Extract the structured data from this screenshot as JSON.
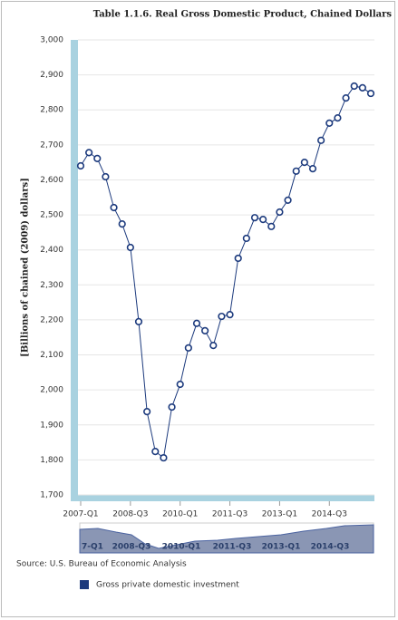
{
  "chart_data": {
    "type": "line",
    "title": "Table 1.1.6. Real Gross Domestic Product, Chained Dollars",
    "y_label": "[Billions of chained (2009) dollars]",
    "categories": [
      "2007-Q1",
      null,
      null,
      null,
      null,
      null,
      "2008-Q3",
      null,
      null,
      null,
      null,
      null,
      "2010-Q1",
      null,
      null,
      null,
      null,
      null,
      "2011-Q3",
      null,
      null,
      null,
      null,
      null,
      "2013-Q1",
      null,
      null,
      null,
      null,
      null,
      "2014-Q3",
      null,
      null,
      null,
      null,
      null
    ],
    "series": [
      {
        "name": "Gross private domestic investment",
        "color": "#1c3a7d",
        "values": [
          2640,
          2678,
          2661,
          2609,
          2521,
          2474,
          2407,
          2195,
          1938,
          1824,
          1806,
          1951,
          2016,
          2120,
          2190,
          2169,
          2127,
          2210,
          2215,
          2376,
          2433,
          2492,
          2487,
          2467,
          2508,
          2542,
          2625,
          2650,
          2632,
          2713,
          2762,
          2777,
          2834,
          2868,
          2863,
          2847
        ]
      }
    ],
    "ylim": [
      1700,
      3000
    ],
    "yticks": [
      {
        "value": 1700,
        "label": "1,700"
      },
      {
        "value": 1800,
        "label": "1,800"
      },
      {
        "value": 1900,
        "label": "1,900"
      },
      {
        "value": 2000,
        "label": "2,000"
      },
      {
        "value": 2100,
        "label": "2,100"
      },
      {
        "value": 2200,
        "label": "2,200"
      },
      {
        "value": 2300,
        "label": "2,300"
      },
      {
        "value": 2400,
        "label": "2,400"
      },
      {
        "value": 2500,
        "label": "2,500"
      },
      {
        "value": 2600,
        "label": "2,600"
      },
      {
        "value": 2700,
        "label": "2,700"
      },
      {
        "value": 2800,
        "label": "2,800"
      },
      {
        "value": 2900,
        "label": "2,900"
      },
      {
        "value": 3000,
        "label": "3,000"
      }
    ],
    "grid": true,
    "navigator_labels": [
      "7-Q1",
      "2008-Q3",
      "2010-Q1",
      "2011-Q3",
      "2013-Q1",
      "2014-Q3"
    ],
    "source": "Source: U.S. Bureau of Economic Analysis"
  }
}
